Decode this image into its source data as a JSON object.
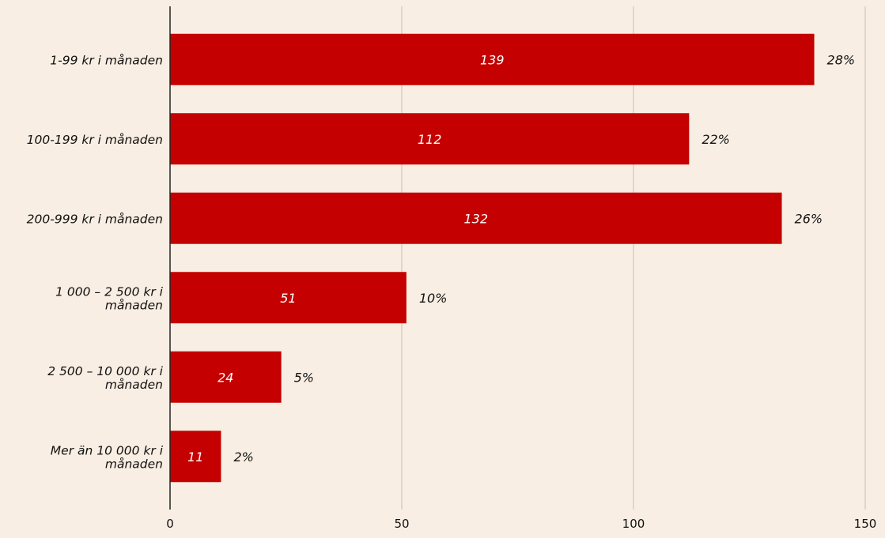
{
  "chart_data": {
    "type": "bar",
    "orientation": "horizontal",
    "categories": [
      [
        "1-99 kr i månaden"
      ],
      [
        "100-199 kr i månaden"
      ],
      [
        "200-999 kr i månaden"
      ],
      [
        "1 000 – 2 500 kr i",
        "månaden"
      ],
      [
        "2 500 – 10 000 kr i",
        "månaden"
      ],
      [
        "Mer än 10 000 kr i",
        "månaden"
      ]
    ],
    "values": [
      139,
      112,
      132,
      51,
      24,
      11
    ],
    "value_labels": [
      "139",
      "112",
      "132",
      "51",
      "24",
      "11"
    ],
    "percent_labels": [
      "28%",
      "22%",
      "26%",
      "10%",
      "5%",
      "2%"
    ],
    "xlim": [
      0,
      150
    ],
    "xticks": [
      0,
      50,
      100,
      150
    ],
    "xtick_labels": [
      "0",
      "50",
      "100",
      "150"
    ],
    "grid": true,
    "bar_color": "#c40000",
    "gridline_color": "#c9bfb4",
    "axis_color": "#222222"
  }
}
